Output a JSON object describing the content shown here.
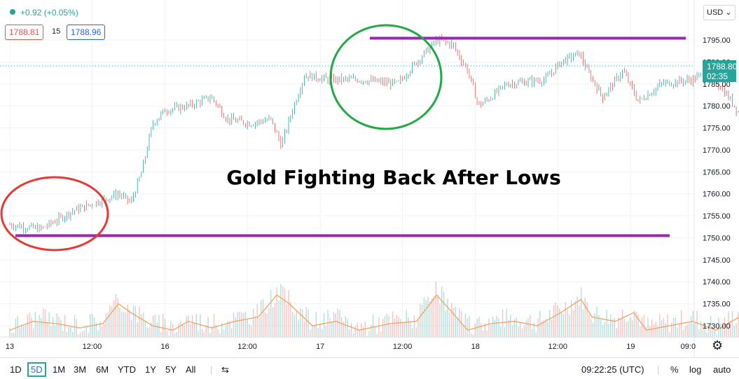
{
  "header": {
    "change": "+0.92 (+0.05%)",
    "bid": "1788.81",
    "spread": "15",
    "ask": "1788.96",
    "currency": "USD"
  },
  "colors": {
    "up": "#26a69a",
    "down": "#ef5350",
    "annotation_line": "#9c27b0",
    "circle_red": "#e53935",
    "circle_green": "#22a846",
    "volume_ma": "#f4a261"
  },
  "chart_data": {
    "type": "candlestick",
    "title": "Gold Fighting Back After Lows",
    "yaxis": {
      "range": [
        1727,
        1802
      ],
      "ticks": [
        1795,
        1790,
        1785,
        1780,
        1775,
        1770,
        1765,
        1760,
        1755,
        1750,
        1745,
        1740,
        1735,
        1730
      ],
      "labels": [
        "1795.00",
        "1790.00",
        "1785.00",
        "1780.00",
        "1775.00",
        "1770.00",
        "1765.00",
        "1760.00",
        "1755.00",
        "1750.00",
        "1745.00",
        "1740.00",
        "1735.00",
        "1730.00"
      ]
    },
    "xaxis": {
      "labels": [
        "13",
        "12:00",
        "16",
        "12:00",
        "17",
        "12:00",
        "18",
        "12:00",
        "19",
        "09:0"
      ]
    },
    "price_path": [
      [
        13.0,
        1753
      ],
      [
        13.2,
        1752
      ],
      [
        13.4,
        1756
      ],
      [
        13.55,
        1758
      ],
      [
        13.7,
        1760
      ],
      [
        13.78,
        1758
      ],
      [
        13.85,
        1765
      ],
      [
        13.92,
        1776
      ],
      [
        14.0,
        1779
      ],
      [
        14.15,
        1780
      ],
      [
        14.3,
        1782
      ],
      [
        14.4,
        1777
      ],
      [
        14.55,
        1776
      ],
      [
        14.68,
        1777
      ],
      [
        14.75,
        1771
      ],
      [
        14.82,
        1779
      ],
      [
        14.9,
        1787
      ],
      [
        15.05,
        1786
      ],
      [
        15.25,
        1786
      ],
      [
        15.5,
        1785
      ],
      [
        15.62,
        1790
      ],
      [
        15.75,
        1795
      ],
      [
        15.85,
        1794
      ],
      [
        15.95,
        1788
      ],
      [
        16.02,
        1780
      ],
      [
        16.1,
        1782
      ],
      [
        16.2,
        1785
      ],
      [
        16.45,
        1786
      ],
      [
        16.55,
        1790
      ],
      [
        16.67,
        1792
      ],
      [
        16.72,
        1788
      ],
      [
        16.82,
        1782
      ],
      [
        16.95,
        1788
      ],
      [
        17.05,
        1781
      ],
      [
        17.2,
        1785
      ],
      [
        17.4,
        1786
      ],
      [
        17.5,
        1788
      ],
      [
        17.65,
        1781
      ],
      [
        17.72,
        1777
      ],
      [
        17.8,
        1782
      ],
      [
        17.9,
        1785
      ],
      [
        18.0,
        1788
      ],
      [
        18.1,
        1783
      ],
      [
        18.2,
        1781
      ],
      [
        18.3,
        1788.8
      ]
    ],
    "volume": {
      "ma_path": [
        [
          13.0,
          1729
        ],
        [
          13.15,
          1731
        ],
        [
          13.3,
          1730.5
        ],
        [
          13.45,
          1729.5
        ],
        [
          13.6,
          1730.5
        ],
        [
          13.7,
          1735
        ],
        [
          13.78,
          1733
        ],
        [
          13.92,
          1730
        ],
        [
          14.05,
          1729
        ],
        [
          14.15,
          1731
        ],
        [
          14.3,
          1729.5
        ],
        [
          14.45,
          1731
        ],
        [
          14.6,
          1732
        ],
        [
          14.72,
          1737
        ],
        [
          14.8,
          1735
        ],
        [
          14.95,
          1730
        ],
        [
          15.1,
          1731
        ],
        [
          15.25,
          1729
        ],
        [
          15.45,
          1730.5
        ],
        [
          15.62,
          1731
        ],
        [
          15.75,
          1737
        ],
        [
          15.85,
          1733
        ],
        [
          15.95,
          1729
        ],
        [
          16.1,
          1730.5
        ],
        [
          16.25,
          1731
        ],
        [
          16.4,
          1730
        ],
        [
          16.55,
          1733
        ],
        [
          16.68,
          1736
        ],
        [
          16.75,
          1732
        ],
        [
          16.9,
          1731
        ],
        [
          17.02,
          1733
        ],
        [
          17.1,
          1729
        ],
        [
          17.25,
          1730
        ],
        [
          17.4,
          1731
        ],
        [
          17.55,
          1729
        ],
        [
          17.75,
          1733
        ],
        [
          17.85,
          1729
        ],
        [
          18.0,
          1732
        ],
        [
          18.2,
          1734
        ],
        [
          18.3,
          1734
        ]
      ],
      "bars_per_day": 96
    },
    "annotations": {
      "support": 1750.5,
      "resistance": 1795.4,
      "circles": [
        "red",
        "green"
      ]
    }
  },
  "last_price": {
    "value": "1788.80",
    "countdown": "02:35"
  },
  "bottom_bar": {
    "timeframes": [
      "1D",
      "5D",
      "1M",
      "3M",
      "6M",
      "YTD",
      "1Y",
      "5Y",
      "All"
    ],
    "selected": "5D",
    "time": "09:22:25 (UTC)",
    "percent": "%",
    "log": "log",
    "auto": "auto"
  }
}
